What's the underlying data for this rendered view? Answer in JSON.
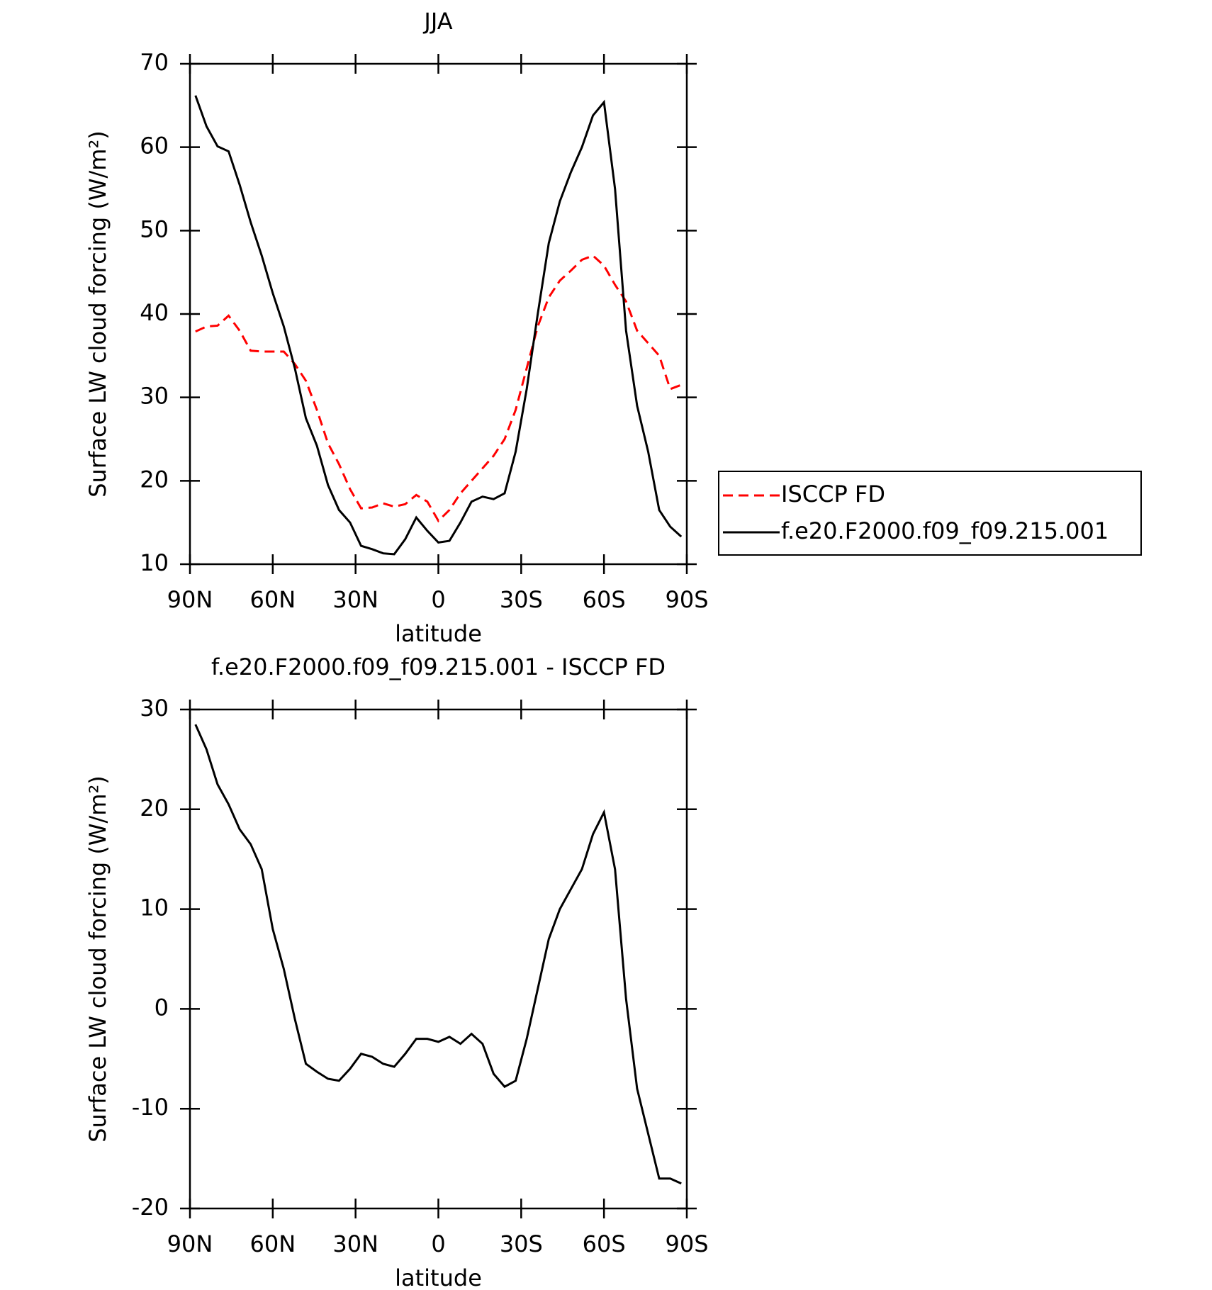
{
  "chart_data": [
    {
      "type": "line",
      "title": "JJA",
      "xlabel": "latitude",
      "ylabel": "Surface LW cloud forcing (W/m²)",
      "x": [
        88,
        84,
        80,
        76,
        72,
        68,
        64,
        60,
        56,
        52,
        48,
        44,
        40,
        36,
        32,
        28,
        24,
        20,
        16,
        12,
        8,
        4,
        0,
        -4,
        -8,
        -12,
        -16,
        -20,
        -24,
        -28,
        -32,
        -36,
        -40,
        -44,
        -48,
        -52,
        -56,
        -60,
        -64,
        -68,
        -72,
        -76,
        -80,
        -84,
        -88
      ],
      "series": [
        {
          "name": "ISCCP FD",
          "color": "#ff0000",
          "dash": true,
          "values": [
            37.9,
            38.5,
            38.6,
            39.8,
            38,
            35.6,
            35.5,
            35.5,
            35.5,
            34,
            32,
            28.5,
            24.5,
            22,
            19,
            16.7,
            16.8,
            17.3,
            16.9,
            17.2,
            18.3,
            17.5,
            15.2,
            16.5,
            18.5,
            20,
            21.5,
            23,
            25,
            28.5,
            33.5,
            38.5,
            42,
            44,
            45.2,
            46.5,
            47,
            45.8,
            43.5,
            41.5,
            38,
            36.5,
            35,
            31,
            31.5
          ]
        },
        {
          "name": "f.e20.F2000.f09_f09.215.001",
          "color": "#000000",
          "dash": false,
          "values": [
            66.2,
            62.5,
            60.1,
            59.5,
            55.5,
            51,
            47,
            42.5,
            38.5,
            33.5,
            27.5,
            24.2,
            19.5,
            16.5,
            15,
            12.2,
            11.8,
            11.3,
            11.2,
            13,
            15.6,
            14,
            12.6,
            12.8,
            15,
            17.5,
            18.1,
            17.8,
            18.5,
            23.5,
            31,
            40,
            48.5,
            53.5,
            57,
            60,
            63.8,
            65.4,
            55,
            38,
            29,
            23.5,
            16.5,
            14.5,
            13.3
          ]
        }
      ],
      "xlim": [
        90,
        -90
      ],
      "xticks": [
        {
          "value": 90,
          "label": "90N"
        },
        {
          "value": 60,
          "label": "60N"
        },
        {
          "value": 30,
          "label": "30N"
        },
        0,
        {
          "value": -30,
          "label": "30S"
        },
        {
          "value": -60,
          "label": "60S"
        },
        {
          "value": -90,
          "label": "90S"
        }
      ],
      "ylim": [
        10,
        70
      ],
      "yticks": [
        10,
        20,
        30,
        40,
        50,
        60,
        70
      ],
      "legend": "right"
    },
    {
      "type": "line",
      "title": "f.e20.F2000.f09_f09.215.001 - ISCCP FD",
      "xlabel": "latitude",
      "ylabel": "Surface LW cloud forcing (W/m²)",
      "x": [
        88,
        84,
        80,
        76,
        72,
        68,
        64,
        60,
        56,
        52,
        48,
        44,
        40,
        36,
        32,
        28,
        24,
        20,
        16,
        12,
        8,
        4,
        0,
        -4,
        -8,
        -12,
        -16,
        -20,
        -24,
        -28,
        -32,
        -36,
        -40,
        -44,
        -48,
        -52,
        -56,
        -60,
        -64,
        -68,
        -72,
        -76,
        -80,
        -84,
        -88
      ],
      "series": [
        {
          "color": "#000000",
          "dash": false,
          "values": [
            28.5,
            26,
            22.5,
            20.5,
            18,
            16.5,
            14,
            8,
            4,
            -1,
            -5.5,
            -6.3,
            -7,
            -7.2,
            -6,
            -4.5,
            -4.8,
            -5.5,
            -5.8,
            -4.5,
            -3,
            -3,
            -3.3,
            -2.8,
            -3.5,
            -2.5,
            -3.5,
            -6.5,
            -7.8,
            -7.2,
            -3,
            2,
            7,
            10,
            12,
            14,
            17.5,
            19.7,
            14,
            1,
            -8,
            -12.5,
            -17,
            -17,
            -17.5
          ]
        }
      ],
      "xlim": [
        90,
        -90
      ],
      "xticks": [
        {
          "value": 90,
          "label": "90N"
        },
        {
          "value": 60,
          "label": "60N"
        },
        {
          "value": 30,
          "label": "30N"
        },
        0,
        {
          "value": -30,
          "label": "30S"
        },
        {
          "value": -60,
          "label": "60S"
        },
        {
          "value": -90,
          "label": "90S"
        }
      ],
      "ylim": [
        -20,
        30
      ],
      "yticks": [
        -20,
        -10,
        0,
        10,
        20,
        30
      ]
    }
  ]
}
